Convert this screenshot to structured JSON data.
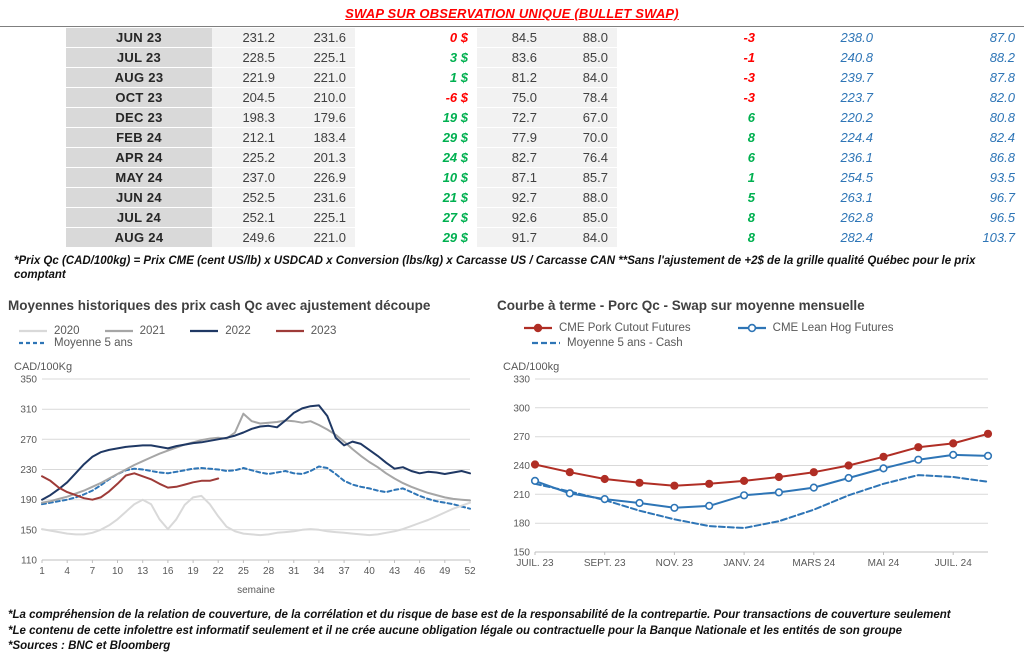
{
  "header": {
    "title": "SWAP SUR OBSERVATION UNIQUE (BULLET SWAP)"
  },
  "table": {
    "colors": {
      "positive": "#00B050",
      "negative": "#FF0000",
      "forward_blue": "#2E75B6"
    },
    "rows": [
      {
        "month": "JUN 23",
        "v1": "231.2",
        "v2": "231.6",
        "d1": "0 $",
        "d1n": true,
        "v3": "84.5",
        "v4": "88.0",
        "d2": "-3",
        "d2n": true,
        "b1": "238.0",
        "b2": "87.0"
      },
      {
        "month": "JUL 23",
        "v1": "228.5",
        "v2": "225.1",
        "d1": "3 $",
        "d1n": false,
        "v3": "83.6",
        "v4": "85.0",
        "d2": "-1",
        "d2n": true,
        "b1": "240.8",
        "b2": "88.2"
      },
      {
        "month": "AUG 23",
        "v1": "221.9",
        "v2": "221.0",
        "d1": "1 $",
        "d1n": false,
        "v3": "81.2",
        "v4": "84.0",
        "d2": "-3",
        "d2n": true,
        "b1": "239.7",
        "b2": "87.8"
      },
      {
        "month": "OCT 23",
        "v1": "204.5",
        "v2": "210.0",
        "d1": "-6 $",
        "d1n": true,
        "v3": "75.0",
        "v4": "78.4",
        "d2": "-3",
        "d2n": true,
        "b1": "223.7",
        "b2": "82.0"
      },
      {
        "month": "DEC 23",
        "v1": "198.3",
        "v2": "179.6",
        "d1": "19 $",
        "d1n": false,
        "v3": "72.7",
        "v4": "67.0",
        "d2": "6",
        "d2n": false,
        "b1": "220.2",
        "b2": "80.8"
      },
      {
        "month": "FEB 24",
        "v1": "212.1",
        "v2": "183.4",
        "d1": "29 $",
        "d1n": false,
        "v3": "77.9",
        "v4": "70.0",
        "d2": "8",
        "d2n": false,
        "b1": "224.4",
        "b2": "82.4"
      },
      {
        "month": "APR 24",
        "v1": "225.2",
        "v2": "201.3",
        "d1": "24 $",
        "d1n": false,
        "v3": "82.7",
        "v4": "76.4",
        "d2": "6",
        "d2n": false,
        "b1": "236.1",
        "b2": "86.8"
      },
      {
        "month": "MAY 24",
        "v1": "237.0",
        "v2": "226.9",
        "d1": "10 $",
        "d1n": false,
        "v3": "87.1",
        "v4": "85.7",
        "d2": "1",
        "d2n": false,
        "b1": "254.5",
        "b2": "93.5"
      },
      {
        "month": "JUN 24",
        "v1": "252.5",
        "v2": "231.6",
        "d1": "21 $",
        "d1n": false,
        "v3": "92.7",
        "v4": "88.0",
        "d2": "5",
        "d2n": false,
        "b1": "263.1",
        "b2": "96.7"
      },
      {
        "month": "JUL 24",
        "v1": "252.1",
        "v2": "225.1",
        "d1": "27 $",
        "d1n": false,
        "v3": "92.6",
        "v4": "85.0",
        "d2": "8",
        "d2n": false,
        "b1": "262.8",
        "b2": "96.5"
      },
      {
        "month": "AUG 24",
        "v1": "249.6",
        "v2": "221.0",
        "d1": "29 $",
        "d1n": false,
        "v3": "91.7",
        "v4": "84.0",
        "d2": "8",
        "d2n": false,
        "b1": "282.4",
        "b2": "103.7"
      }
    ],
    "footnote": "*Prix Qc (CAD/100kg) = Prix CME (cent US/lb) x USDCAD x Conversion (lbs/kg) x Carcasse US / Carcasse CAN **Sans l'ajustement de +2$ de la grille qualité Québec pour le prix comptant"
  },
  "chart_data": [
    {
      "type": "line",
      "title": "Moyennes historiques des prix cash Qc avec ajustement découpe",
      "ylabel": "CAD/100Kg",
      "xlabel": "semaine",
      "ylim": [
        110,
        350
      ],
      "yticks": [
        110,
        150,
        190,
        230,
        270,
        310,
        350
      ],
      "xlim": [
        1,
        52
      ],
      "xticks": [
        1,
        4,
        7,
        10,
        13,
        16,
        19,
        22,
        25,
        28,
        31,
        34,
        37,
        40,
        43,
        46,
        49,
        52
      ],
      "x_start": 1,
      "grid": true,
      "legend_position": "top",
      "series": [
        {
          "name": "2020",
          "color": "#d9d9d9",
          "values": [
            151,
            149,
            147,
            145,
            144,
            144,
            146,
            150,
            156,
            164,
            174,
            184,
            190,
            184,
            164,
            151,
            164,
            183,
            193,
            195,
            184,
            168,
            154,
            148,
            145,
            144,
            143,
            144,
            146,
            147,
            148,
            150,
            151,
            150,
            148,
            147,
            146,
            145,
            144,
            143,
            144,
            146,
            148,
            151,
            155,
            159,
            163,
            168,
            173,
            178,
            182,
            186
          ]
        },
        {
          "name": "2021",
          "color": "#a6a6a6",
          "values": [
            186,
            188,
            191,
            194,
            198,
            202,
            207,
            212,
            218,
            224,
            230,
            236,
            241,
            246,
            251,
            255,
            259,
            263,
            266,
            269,
            271,
            272,
            271,
            279,
            304,
            294,
            291,
            292,
            293,
            295,
            294,
            292,
            294,
            289,
            283,
            276,
            267,
            257,
            248,
            240,
            233,
            225,
            218,
            212,
            207,
            203,
            199,
            196,
            193,
            191,
            190,
            189
          ]
        },
        {
          "name": "2022",
          "color": "#1f3864",
          "values": [
            190,
            196,
            204,
            213,
            225,
            237,
            247,
            253,
            256,
            258,
            260,
            261,
            262,
            262,
            260,
            258,
            261,
            263,
            265,
            266,
            268,
            270,
            272,
            275,
            279,
            284,
            287,
            288,
            286,
            295,
            305,
            311,
            314,
            315,
            301,
            272,
            262,
            267,
            264,
            256,
            248,
            239,
            231,
            233,
            228,
            225,
            227,
            226,
            224,
            226,
            228,
            225
          ]
        },
        {
          "name": "2023",
          "color": "#9e3b38",
          "values": [
            221,
            215,
            206,
            200,
            196,
            192,
            190,
            193,
            201,
            211,
            222,
            225,
            221,
            217,
            211,
            206,
            207,
            210,
            213,
            215,
            215,
            218
          ]
        },
        {
          "name": "Moyenne 5 ans",
          "color": "#2e75b6",
          "dash": "4,3",
          "values": [
            184,
            186,
            188,
            190,
            193,
            197,
            202,
            209,
            217,
            224,
            229,
            231,
            230,
            228,
            226,
            225,
            227,
            229,
            231,
            232,
            231,
            230,
            228,
            229,
            232,
            229,
            226,
            224,
            226,
            228,
            225,
            224,
            228,
            234,
            232,
            224,
            215,
            210,
            207,
            205,
            202,
            200,
            203,
            205,
            200,
            195,
            191,
            188,
            186,
            184,
            181,
            178
          ]
        }
      ]
    },
    {
      "type": "line",
      "title": "Courbe à terme - Porc Qc - Swap sur moyenne mensuelle",
      "ylabel": "CAD/100kg",
      "ylim": [
        150,
        330
      ],
      "yticks": [
        150,
        180,
        210,
        240,
        270,
        300,
        330
      ],
      "xlim": [
        0,
        13
      ],
      "xtick_pos": [
        0,
        2,
        4,
        6,
        8,
        10,
        12
      ],
      "xtick_labels": [
        "JUIL. 23",
        "SEPT. 23",
        "NOV. 23",
        "JANV. 24",
        "MARS 24",
        "MAI 24",
        "JUIL. 24"
      ],
      "x_start": 0,
      "grid": true,
      "legend_position": "top",
      "months": [
        "JUL 23",
        "AUG 23",
        "SEP 23",
        "OCT 23",
        "NOV 23",
        "DEC 23",
        "JAN 24",
        "FEB 24",
        "MAR 24",
        "APR 24",
        "MAY 24",
        "JUN 24",
        "JUL 24",
        "AUG 24"
      ],
      "series": [
        {
          "name": "CME Pork Cutout Futures",
          "color": "#b02e25",
          "marker": "filled",
          "values": [
            241,
            233,
            226,
            222,
            219,
            221,
            224,
            228,
            233,
            240,
            249,
            259,
            263,
            273
          ]
        },
        {
          "name": "CME Lean Hog Futures",
          "color": "#2e75b6",
          "marker": "open",
          "values": [
            224,
            211,
            205,
            201,
            196,
            198,
            209,
            212,
            217,
            227,
            237,
            246,
            251,
            250
          ]
        },
        {
          "name": "Moyenne 5 ans - Cash",
          "color": "#2e75b6",
          "dash": "6,3",
          "values": [
            221,
            213,
            204,
            193,
            184,
            177,
            175,
            182,
            194,
            209,
            221,
            230,
            228,
            223
          ]
        }
      ]
    }
  ],
  "footnotes": [
    "*La compréhension de la relation de couverture, de la corrélation et du risque de base est de la responsabilité de la contrepartie. Pour transactions de couverture seulement",
    "*Le contenu de cette infolettre est informatif seulement et il ne crée aucune obligation légale ou contractuelle pour la Banque Nationale et les entités de son groupe",
    "*Sources : BNC et Bloomberg"
  ]
}
